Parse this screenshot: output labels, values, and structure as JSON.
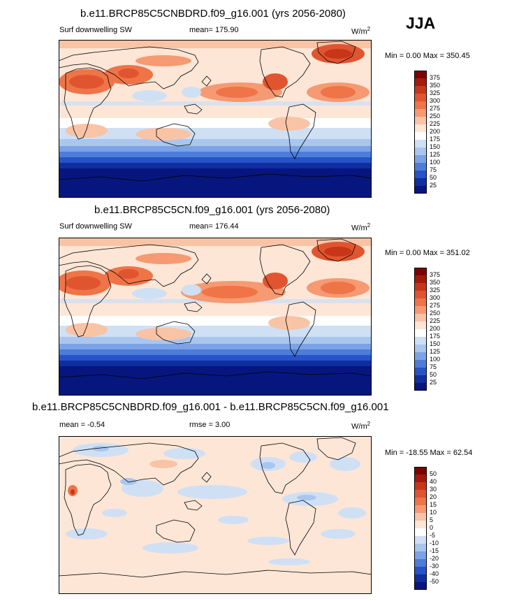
{
  "season": "JJA",
  "panels": [
    {
      "title": "b.e11.BRCP85C5CNBDRD.f09_g16.001 (yrs 2056-2080)",
      "field": "Surf downwelling SW",
      "stat": "mean= 175.90",
      "units": "W/m",
      "units_exp": "2",
      "minmax": "Min =   0.00 Max = 350.45",
      "colorbar": {
        "labels": [
          "375",
          "350",
          "325",
          "300",
          "275",
          "250",
          "225",
          "200",
          "175",
          "150",
          "125",
          "100",
          "75",
          "50",
          "25"
        ],
        "colors": [
          "#7f0000",
          "#a31a0a",
          "#c8361a",
          "#e05530",
          "#ef7447",
          "#f59a72",
          "#f9c3a5",
          "#fde6d6",
          "#ffffff",
          "#cfe0f5",
          "#a9c6ee",
          "#7ba3e6",
          "#4c7ddb",
          "#2653c8",
          "#0f2ea0",
          "#07167e"
        ]
      }
    },
    {
      "title": "b.e11.BRCP85C5CN.f09_g16.001 (yrs 2056-2080)",
      "field": "Surf downwelling SW",
      "stat": "mean= 176.44",
      "units": "W/m",
      "units_exp": "2",
      "minmax": "Min =   0.00 Max = 351.02",
      "colorbar": {
        "labels": [
          "375",
          "350",
          "325",
          "300",
          "275",
          "250",
          "225",
          "200",
          "175",
          "150",
          "125",
          "100",
          "75",
          "50",
          "25"
        ],
        "colors": [
          "#7f0000",
          "#a31a0a",
          "#c8361a",
          "#e05530",
          "#ef7447",
          "#f59a72",
          "#f9c3a5",
          "#fde6d6",
          "#ffffff",
          "#cfe0f5",
          "#a9c6ee",
          "#7ba3e6",
          "#4c7ddb",
          "#2653c8",
          "#0f2ea0",
          "#07167e"
        ]
      }
    },
    {
      "title": "b.e11.BRCP85C5CNBDRD.f09_g16.001 - b.e11.BRCP85C5CN.f09_g16.001",
      "stat": "mean =  -0.54",
      "stat2": "rmse =   3.00",
      "units": "W/m",
      "units_exp": "2",
      "minmax": "Min = -18.55 Max =  62.54",
      "colorbar": {
        "labels": [
          "50",
          "40",
          "30",
          "20",
          "15",
          "10",
          "5",
          "0",
          "-5",
          "-10",
          "-15",
          "-20",
          "-30",
          "-40",
          "-50"
        ],
        "colors": [
          "#7f0000",
          "#a31a0a",
          "#c8361a",
          "#e05530",
          "#ef7447",
          "#f59a72",
          "#f9c3a5",
          "#fde6d6",
          "#ffffff",
          "#cfe0f5",
          "#a9c6ee",
          "#7ba3e6",
          "#4c7ddb",
          "#2653c8",
          "#0f2ea0",
          "#07167e"
        ]
      }
    }
  ]
}
